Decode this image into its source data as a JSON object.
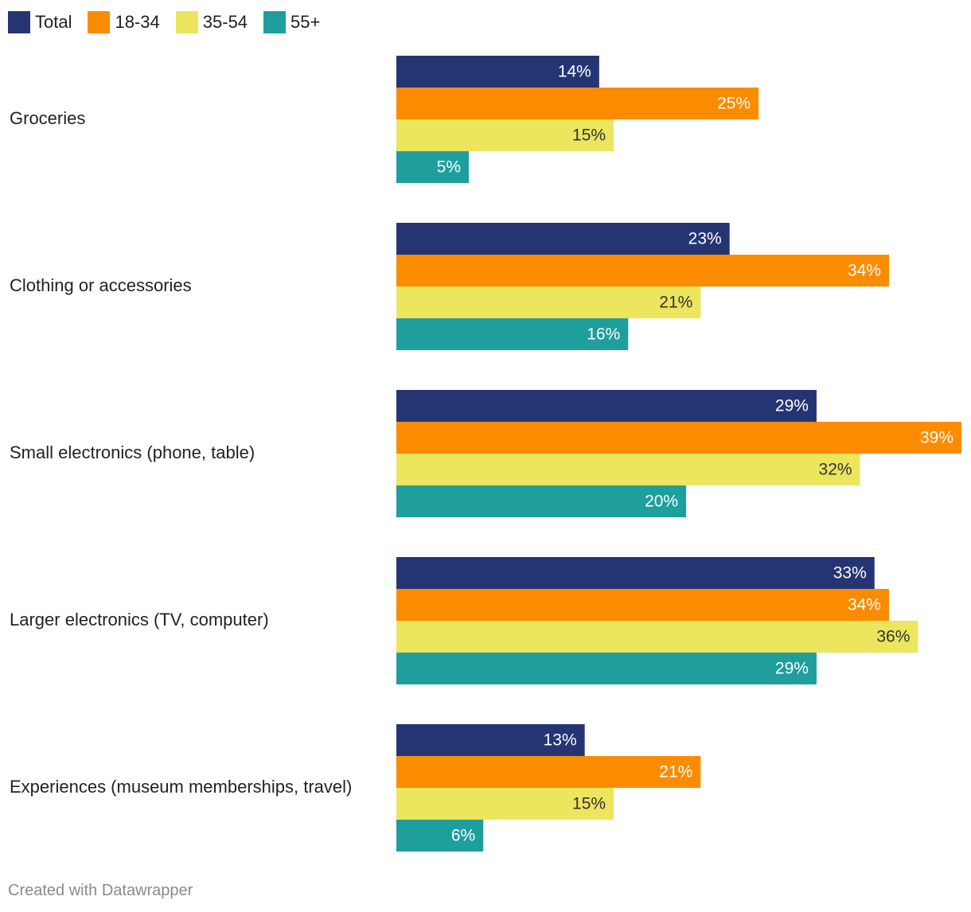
{
  "chart_data": {
    "type": "bar",
    "orientation": "horizontal",
    "categories": [
      "Groceries",
      "Clothing or accessories",
      "Small electronics (phone, table)",
      "Larger electronics (TV, computer)",
      "Experiences (museum memberships, travel)"
    ],
    "series": [
      {
        "name": "Total",
        "color": "#253574",
        "label_color": "#ffffff",
        "values": [
          14,
          23,
          29,
          33,
          13
        ]
      },
      {
        "name": "18-34",
        "color": "#fb8c00",
        "label_color": "#ffffff",
        "values": [
          25,
          34,
          39,
          34,
          21
        ]
      },
      {
        "name": "35-54",
        "color": "#ece55e",
        "label_color": "#333333",
        "values": [
          15,
          21,
          32,
          36,
          15
        ]
      },
      {
        "name": "55+",
        "color": "#1f9e9e",
        "label_color": "#ffffff",
        "values": [
          5,
          16,
          20,
          29,
          6
        ]
      }
    ],
    "value_suffix": "%",
    "xlim": [
      0,
      39
    ],
    "legend_position": "top-left",
    "grid": false
  },
  "footer": {
    "text": "Created with Datawrapper"
  }
}
